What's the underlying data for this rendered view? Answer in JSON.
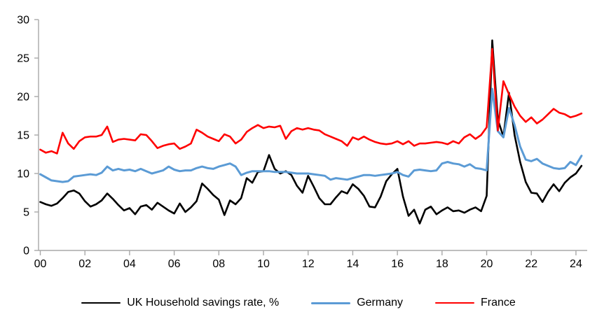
{
  "chart_data": {
    "type": "line",
    "title": "",
    "x_start": "2000Q1",
    "x_end": "2024Q2",
    "x_frequency": "quarterly",
    "x_tick_labels": [
      "00",
      "02",
      "04",
      "06",
      "08",
      "10",
      "12",
      "14",
      "16",
      "18",
      "20",
      "22",
      "24"
    ],
    "x_tick_every_n_points": 8,
    "y_ticks": [
      "0",
      "5",
      "10",
      "15",
      "20",
      "25",
      "30"
    ],
    "ylim": [
      0,
      30
    ],
    "grid": false,
    "legend_position": "bottom",
    "axis_color": "#A8A8A8",
    "tick_label_color": "#000000",
    "series": [
      {
        "name": "UK Household savings rate, %",
        "color": "#000000",
        "line_width": 2.6,
        "values": [
          6.3,
          6.0,
          5.8,
          6.1,
          6.8,
          7.6,
          7.8,
          7.4,
          6.4,
          5.7,
          6.0,
          6.5,
          7.4,
          6.7,
          5.9,
          5.2,
          5.5,
          4.7,
          5.7,
          5.9,
          5.3,
          6.2,
          5.7,
          5.2,
          4.8,
          6.1,
          5.0,
          5.6,
          6.4,
          8.7,
          8.0,
          7.2,
          6.6,
          4.6,
          6.5,
          6.0,
          6.8,
          9.4,
          8.8,
          10.2,
          10.3,
          12.4,
          10.6,
          10.0,
          10.3,
          9.8,
          8.4,
          7.5,
          9.7,
          8.3,
          6.8,
          6.0,
          6.0,
          6.9,
          7.7,
          7.4,
          8.6,
          8.0,
          7.1,
          5.7,
          5.6,
          7.0,
          9.0,
          9.9,
          10.6,
          7.0,
          4.5,
          5.3,
          3.5,
          5.3,
          5.7,
          4.7,
          5.2,
          5.6,
          5.1,
          5.2,
          4.9,
          5.3,
          5.6,
          5.1,
          7.1,
          27.3,
          17.0,
          14.8,
          20.5,
          15.0,
          11.5,
          8.9,
          7.5,
          7.4,
          6.3,
          7.6,
          8.6,
          7.7,
          8.8,
          9.5,
          10.0,
          11.0
        ]
      },
      {
        "name": "Germany",
        "color": "#5B9BD5",
        "line_width": 3.0,
        "values": [
          9.9,
          9.5,
          9.1,
          9.0,
          8.9,
          9.0,
          9.6,
          9.7,
          9.8,
          9.9,
          9.8,
          10.1,
          10.9,
          10.4,
          10.6,
          10.4,
          10.5,
          10.3,
          10.6,
          10.3,
          10.0,
          10.2,
          10.4,
          10.9,
          10.5,
          10.3,
          10.4,
          10.4,
          10.7,
          10.9,
          10.7,
          10.6,
          10.9,
          11.1,
          11.3,
          10.9,
          9.8,
          10.1,
          10.3,
          10.3,
          10.3,
          10.3,
          10.2,
          10.2,
          10.2,
          10.1,
          10.0,
          10.0,
          10.0,
          9.9,
          9.8,
          9.7,
          9.2,
          9.4,
          9.3,
          9.2,
          9.4,
          9.6,
          9.8,
          9.8,
          9.7,
          9.8,
          9.9,
          10.0,
          10.2,
          9.8,
          9.6,
          10.4,
          10.5,
          10.4,
          10.3,
          10.4,
          11.3,
          11.5,
          11.3,
          11.2,
          10.9,
          11.2,
          10.7,
          10.6,
          10.4,
          21.0,
          15.5,
          14.7,
          18.5,
          16.3,
          13.5,
          11.8,
          11.6,
          11.9,
          11.3,
          11.0,
          10.7,
          10.6,
          10.7,
          11.5,
          11.1,
          12.3
        ]
      },
      {
        "name": "France",
        "color": "#FF0000",
        "line_width": 2.6,
        "values": [
          13.1,
          12.7,
          12.9,
          12.6,
          15.3,
          13.9,
          13.2,
          14.2,
          14.7,
          14.8,
          14.8,
          15.0,
          16.1,
          14.1,
          14.4,
          14.5,
          14.4,
          14.3,
          15.1,
          15.0,
          14.2,
          13.3,
          13.6,
          13.8,
          13.9,
          13.2,
          13.5,
          13.9,
          15.7,
          15.3,
          14.8,
          14.5,
          14.2,
          15.1,
          14.8,
          13.9,
          14.4,
          15.4,
          15.9,
          16.3,
          15.9,
          16.1,
          16.0,
          16.2,
          14.5,
          15.5,
          15.9,
          15.7,
          15.9,
          15.7,
          15.6,
          15.1,
          14.8,
          14.5,
          14.2,
          13.6,
          14.7,
          14.4,
          14.8,
          14.4,
          14.1,
          13.9,
          13.8,
          13.9,
          14.2,
          13.8,
          14.2,
          13.6,
          13.9,
          13.9,
          14.0,
          14.1,
          14.0,
          13.8,
          14.2,
          13.9,
          14.7,
          15.1,
          14.5,
          15.0,
          16.0,
          26.2,
          15.6,
          22.0,
          20.3,
          18.7,
          17.5,
          16.7,
          17.3,
          16.5,
          17.0,
          17.7,
          18.4,
          17.9,
          17.7,
          17.3,
          17.5,
          17.8
        ]
      }
    ]
  }
}
